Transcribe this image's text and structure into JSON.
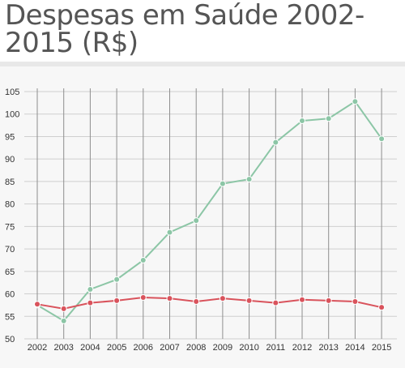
{
  "header": {
    "title": "Despesas em Saúde 2002-2015 (R$)"
  },
  "chart_data": {
    "type": "line",
    "title": "Despesas em Saúde 2002-2015 (R$)",
    "xlabel": "",
    "ylabel": "",
    "ylim": [
      50,
      105
    ],
    "yticks": [
      50,
      55,
      60,
      65,
      70,
      75,
      80,
      85,
      90,
      95,
      100,
      105
    ],
    "categories": [
      "2002",
      "2003",
      "2004",
      "2005",
      "2006",
      "2007",
      "2008",
      "2009",
      "2010",
      "2011",
      "2012",
      "2013",
      "2014",
      "2015"
    ],
    "grid": true,
    "legend": "none",
    "series": [
      {
        "color": "#8cc6a6",
        "values": [
          57.5,
          54.0,
          61.0,
          63.2,
          67.5,
          73.7,
          76.3,
          84.5,
          85.5,
          93.7,
          98.5,
          99.0,
          102.8,
          94.5
        ]
      },
      {
        "color": "#d9535c",
        "values": [
          57.7,
          56.7,
          58.0,
          58.5,
          59.2,
          59.0,
          58.3,
          59.0,
          58.5,
          58.0,
          58.7,
          58.5,
          58.3,
          57.0
        ]
      }
    ]
  }
}
